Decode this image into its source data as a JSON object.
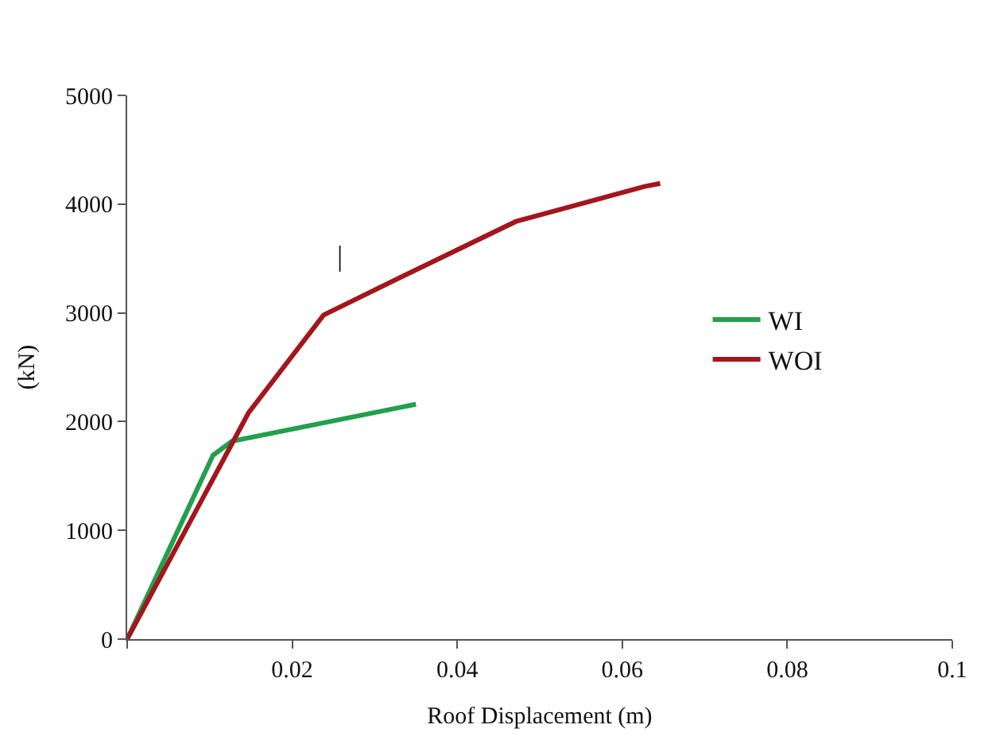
{
  "chart_data": {
    "type": "line",
    "xlabel": "Roof Displacement (m)",
    "ylabel": "(kN)",
    "xlim": [
      0,
      0.1
    ],
    "xticks": [
      {
        "value": 0,
        "label": null
      },
      0.02,
      0.04,
      0.06,
      0.08,
      0.1
    ],
    "ylim": [
      0,
      5000
    ],
    "yticks": [
      0,
      1000,
      2000,
      3000,
      4000,
      5000
    ],
    "legend": "right",
    "marker": "none",
    "line_style": "solid",
    "annotations": [
      "|"
    ],
    "series": [
      {
        "name": "WI",
        "color": "#22a04b",
        "x": [
          0,
          0.0104,
          0.0127,
          0.035
        ],
        "values": [
          0,
          1690,
          1820,
          2160
        ]
      },
      {
        "name": "WOI",
        "color": "#a3161c",
        "x": [
          0,
          0.0147,
          0.0238,
          0.0343,
          0.0471,
          0.0626,
          0.0646
        ],
        "values": [
          0,
          2080,
          2980,
          3370,
          3840,
          4160,
          4190
        ]
      }
    ]
  }
}
